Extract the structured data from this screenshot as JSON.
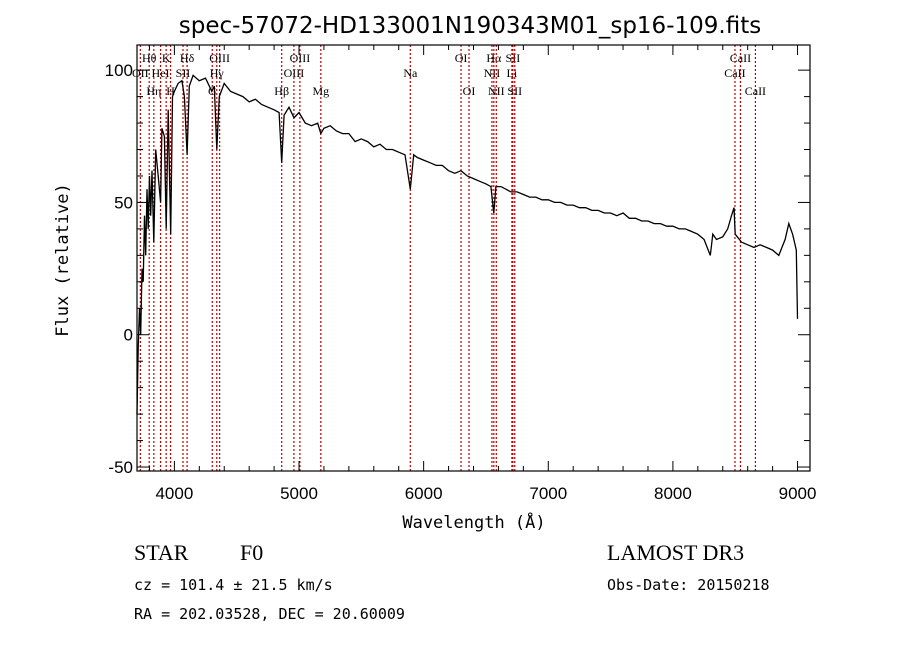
{
  "chart_data": {
    "type": "line",
    "title": "spec-57072-HD133001N190343M01_sp16-109.fits",
    "xlabel": "Wavelength (Å)",
    "ylabel": "Flux (relative)",
    "xlim": [
      3700,
      9100
    ],
    "ylim": [
      -51.5,
      109.5
    ],
    "xticks": [
      4000,
      5000,
      6000,
      7000,
      8000,
      9000
    ],
    "yticks": [
      -50,
      0,
      50,
      100
    ],
    "grid": false,
    "line_color": "#000000",
    "marker_color": "#c00000",
    "series": [
      {
        "name": "spectrum",
        "points": [
          [
            3700,
            -30
          ],
          [
            3710,
            -5
          ],
          [
            3720,
            10
          ],
          [
            3730,
            0
          ],
          [
            3740,
            25
          ],
          [
            3750,
            20
          ],
          [
            3760,
            45
          ],
          [
            3770,
            30
          ],
          [
            3780,
            55
          ],
          [
            3790,
            40
          ],
          [
            3800,
            60
          ],
          [
            3810,
            45
          ],
          [
            3820,
            62
          ],
          [
            3835,
            35
          ],
          [
            3850,
            70
          ],
          [
            3870,
            60
          ],
          [
            3889,
            50
          ],
          [
            3900,
            78
          ],
          [
            3920,
            75
          ],
          [
            3934,
            40
          ],
          [
            3950,
            85
          ],
          [
            3970,
            38
          ],
          [
            3985,
            90
          ],
          [
            4000,
            92
          ],
          [
            4030,
            95
          ],
          [
            4060,
            96
          ],
          [
            4080,
            90
          ],
          [
            4102,
            68
          ],
          [
            4120,
            94
          ],
          [
            4150,
            98
          ],
          [
            4200,
            96
          ],
          [
            4250,
            97
          ],
          [
            4300,
            92
          ],
          [
            4320,
            94
          ],
          [
            4340,
            70
          ],
          [
            4360,
            90
          ],
          [
            4400,
            95
          ],
          [
            4450,
            92
          ],
          [
            4500,
            91
          ],
          [
            4550,
            90
          ],
          [
            4600,
            88
          ],
          [
            4650,
            89
          ],
          [
            4700,
            87
          ],
          [
            4750,
            86
          ],
          [
            4800,
            85
          ],
          [
            4840,
            84
          ],
          [
            4861,
            65
          ],
          [
            4880,
            83
          ],
          [
            4920,
            86
          ],
          [
            4960,
            82
          ],
          [
            5000,
            84
          ],
          [
            5050,
            80
          ],
          [
            5100,
            79
          ],
          [
            5150,
            80
          ],
          [
            5175,
            76
          ],
          [
            5200,
            78
          ],
          [
            5250,
            79
          ],
          [
            5300,
            77
          ],
          [
            5350,
            76
          ],
          [
            5400,
            76
          ],
          [
            5450,
            73
          ],
          [
            5500,
            74
          ],
          [
            5550,
            73
          ],
          [
            5600,
            71
          ],
          [
            5650,
            72
          ],
          [
            5700,
            70
          ],
          [
            5750,
            70
          ],
          [
            5800,
            69
          ],
          [
            5850,
            68
          ],
          [
            5893,
            55
          ],
          [
            5920,
            68
          ],
          [
            5950,
            67
          ],
          [
            6000,
            66
          ],
          [
            6050,
            65
          ],
          [
            6100,
            64
          ],
          [
            6150,
            64
          ],
          [
            6200,
            62
          ],
          [
            6250,
            61
          ],
          [
            6300,
            62
          ],
          [
            6350,
            60
          ],
          [
            6400,
            59
          ],
          [
            6450,
            58
          ],
          [
            6500,
            57
          ],
          [
            6540,
            56
          ],
          [
            6563,
            46
          ],
          [
            6580,
            56
          ],
          [
            6620,
            56
          ],
          [
            6660,
            55
          ],
          [
            6700,
            54
          ],
          [
            6750,
            54
          ],
          [
            6800,
            53
          ],
          [
            6850,
            52
          ],
          [
            6900,
            52
          ],
          [
            6950,
            51
          ],
          [
            7000,
            51
          ],
          [
            7050,
            50
          ],
          [
            7100,
            50
          ],
          [
            7150,
            49
          ],
          [
            7200,
            49
          ],
          [
            7250,
            48
          ],
          [
            7300,
            48
          ],
          [
            7350,
            47
          ],
          [
            7400,
            47
          ],
          [
            7450,
            46
          ],
          [
            7500,
            46
          ],
          [
            7550,
            45
          ],
          [
            7600,
            46
          ],
          [
            7650,
            44
          ],
          [
            7700,
            44
          ],
          [
            7750,
            43
          ],
          [
            7800,
            43
          ],
          [
            7850,
            42
          ],
          [
            7900,
            42
          ],
          [
            7950,
            41
          ],
          [
            8000,
            41
          ],
          [
            8050,
            40
          ],
          [
            8100,
            40
          ],
          [
            8150,
            39
          ],
          [
            8200,
            38
          ],
          [
            8250,
            36
          ],
          [
            8300,
            30
          ],
          [
            8320,
            38
          ],
          [
            8350,
            36
          ],
          [
            8400,
            37
          ],
          [
            8440,
            40
          ],
          [
            8470,
            45
          ],
          [
            8490,
            48
          ],
          [
            8500,
            38
          ],
          [
            8550,
            35
          ],
          [
            8600,
            34
          ],
          [
            8650,
            33
          ],
          [
            8700,
            34
          ],
          [
            8750,
            33
          ],
          [
            8800,
            32
          ],
          [
            8850,
            30
          ],
          [
            8900,
            36
          ],
          [
            8930,
            42
          ],
          [
            8960,
            38
          ],
          [
            8990,
            32
          ],
          [
            9000,
            6
          ]
        ]
      }
    ],
    "line_markers": [
      {
        "label": "OII",
        "wavelength": 3727,
        "row": 2
      },
      {
        "label": "Hθ",
        "wavelength": 3798,
        "row": 1
      },
      {
        "label": "Hη",
        "wavelength": 3835,
        "row": 3
      },
      {
        "label": "HeI",
        "wavelength": 3889,
        "row": 2
      },
      {
        "label": "K",
        "wavelength": 3934,
        "row": 1
      },
      {
        "label": "H",
        "wavelength": 3969,
        "row": 3
      },
      {
        "label": "SII",
        "wavelength": 4069,
        "row": 2
      },
      {
        "label": "Hδ",
        "wavelength": 4102,
        "row": 1
      },
      {
        "label": "G",
        "wavelength": 4304,
        "row": 3
      },
      {
        "label": "Hγ",
        "wavelength": 4340,
        "row": 2
      },
      {
        "label": "OIII",
        "wavelength": 4363,
        "row": 1
      },
      {
        "label": "Hβ",
        "wavelength": 4861,
        "row": 3
      },
      {
        "label": "OIII",
        "wavelength": 4959,
        "row": 2
      },
      {
        "label": "OIII",
        "wavelength": 5007,
        "row": 1
      },
      {
        "label": "Mg",
        "wavelength": 5175,
        "row": 3
      },
      {
        "label": "Na",
        "wavelength": 5893,
        "row": 2
      },
      {
        "label": "OI",
        "wavelength": 6300,
        "row": 1
      },
      {
        "label": "OI",
        "wavelength": 6364,
        "row": 3
      },
      {
        "label": "NII",
        "wavelength": 6548,
        "row": 2
      },
      {
        "label": "Hα",
        "wavelength": 6563,
        "row": 1
      },
      {
        "label": "NII",
        "wavelength": 6583,
        "row": 3
      },
      {
        "label": "Li",
        "wavelength": 6708,
        "row": 2
      },
      {
        "label": "SII",
        "wavelength": 6716,
        "row": 1
      },
      {
        "label": "SII",
        "wavelength": 6731,
        "row": 3
      },
      {
        "label": "CaII",
        "wavelength": 8498,
        "row": 2
      },
      {
        "label": "CaII",
        "wavelength": 8542,
        "row": 1
      },
      {
        "label": "CaII",
        "wavelength": 8662,
        "row": 3
      }
    ]
  },
  "info": {
    "object_type": "STAR",
    "subclass": "F0",
    "survey": "LAMOST DR3",
    "cz": "cz = 101.4 ± 21.5 km/s",
    "obs_date": "Obs-Date: 20150218",
    "coords": "RA = 202.03528, DEC =  20.60009"
  }
}
